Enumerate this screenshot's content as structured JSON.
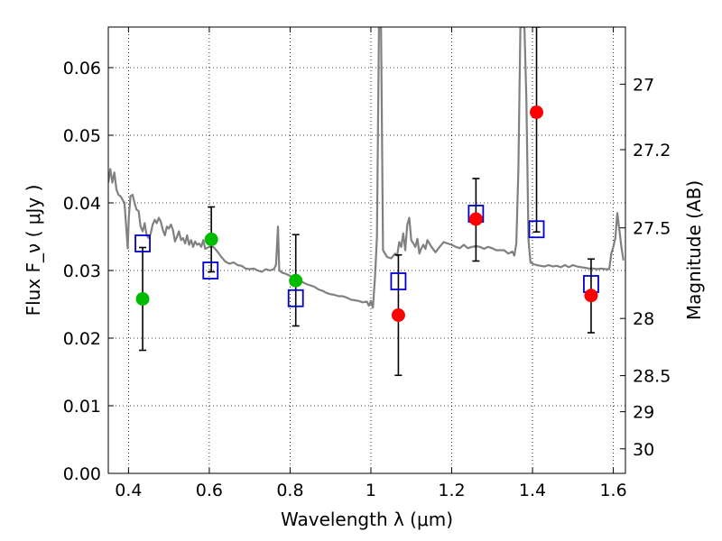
{
  "chart_data": {
    "type": "scatter",
    "xlabel": "Wavelength  λ (μm)",
    "ylabel": "Flux  F_ν  ( μJy )",
    "ylabel_right": "Magnitude (AB)",
    "xlim": [
      0.35,
      1.63
    ],
    "ylim": [
      0.0,
      0.066
    ],
    "grid": true,
    "x_ticks": [
      {
        "value": 0.4,
        "label": "0.4"
      },
      {
        "value": 0.6,
        "label": "0.6"
      },
      {
        "value": 0.8,
        "label": "0.8"
      },
      {
        "value": 1.0,
        "label": "1"
      },
      {
        "value": 1.2,
        "label": "1.2"
      },
      {
        "value": 1.4,
        "label": "1.4"
      },
      {
        "value": 1.6,
        "label": "1.6"
      }
    ],
    "y_ticks": [
      {
        "value": 0.0,
        "label": "0.00"
      },
      {
        "value": 0.01,
        "label": "0.01"
      },
      {
        "value": 0.02,
        "label": "0.02"
      },
      {
        "value": 0.03,
        "label": "0.03"
      },
      {
        "value": 0.04,
        "label": "0.04"
      },
      {
        "value": 0.05,
        "label": "0.05"
      },
      {
        "value": 0.06,
        "label": "0.06"
      }
    ],
    "y2_ticks": [
      {
        "value": 27.0,
        "label": "27"
      },
      {
        "value": 27.2,
        "label": "27.2"
      },
      {
        "value": 27.5,
        "label": "27.5"
      },
      {
        "value": 28.0,
        "label": "28"
      },
      {
        "value": 28.5,
        "label": "28.5"
      },
      {
        "value": 29.0,
        "label": "29"
      },
      {
        "value": 30.0,
        "label": "30"
      }
    ],
    "series": [
      {
        "kind": "line",
        "color": "#808080",
        "points": [
          [
            0.35,
            0.043
          ],
          [
            0.355,
            0.045
          ],
          [
            0.36,
            0.043
          ],
          [
            0.365,
            0.0445
          ],
          [
            0.37,
            0.042
          ],
          [
            0.375,
            0.0412
          ],
          [
            0.38,
            0.041
          ],
          [
            0.385,
            0.0405
          ],
          [
            0.39,
            0.04
          ],
          [
            0.395,
            0.036
          ],
          [
            0.398,
            0.0333
          ],
          [
            0.401,
            0.038
          ],
          [
            0.405,
            0.041
          ],
          [
            0.41,
            0.0412
          ],
          [
            0.415,
            0.04
          ],
          [
            0.42,
            0.039
          ],
          [
            0.425,
            0.0388
          ],
          [
            0.43,
            0.0365
          ],
          [
            0.435,
            0.0358
          ],
          [
            0.44,
            0.037
          ],
          [
            0.445,
            0.0352
          ],
          [
            0.45,
            0.0348
          ],
          [
            0.455,
            0.0355
          ],
          [
            0.46,
            0.0368
          ],
          [
            0.465,
            0.0375
          ],
          [
            0.47,
            0.037
          ],
          [
            0.475,
            0.0378
          ],
          [
            0.48,
            0.0372
          ],
          [
            0.485,
            0.036
          ],
          [
            0.49,
            0.0352
          ],
          [
            0.495,
            0.0365
          ],
          [
            0.5,
            0.0362
          ],
          [
            0.505,
            0.0368
          ],
          [
            0.51,
            0.036
          ],
          [
            0.515,
            0.0343
          ],
          [
            0.52,
            0.035
          ],
          [
            0.525,
            0.0358
          ],
          [
            0.53,
            0.0345
          ],
          [
            0.535,
            0.0348
          ],
          [
            0.54,
            0.034
          ],
          [
            0.545,
            0.0352
          ],
          [
            0.55,
            0.0338
          ],
          [
            0.555,
            0.0345
          ],
          [
            0.56,
            0.0335
          ],
          [
            0.565,
            0.0343
          ],
          [
            0.57,
            0.0338
          ],
          [
            0.575,
            0.034
          ],
          [
            0.58,
            0.0335
          ],
          [
            0.585,
            0.0345
          ],
          [
            0.59,
            0.0332
          ],
          [
            0.6,
            0.0335
          ],
          [
            0.61,
            0.0335
          ],
          [
            0.62,
            0.0328
          ],
          [
            0.63,
            0.032
          ],
          [
            0.64,
            0.0313
          ],
          [
            0.65,
            0.031
          ],
          [
            0.66,
            0.0312
          ],
          [
            0.67,
            0.0308
          ],
          [
            0.68,
            0.0307
          ],
          [
            0.69,
            0.0303
          ],
          [
            0.7,
            0.0302
          ],
          [
            0.71,
            0.0303
          ],
          [
            0.72,
            0.03
          ],
          [
            0.73,
            0.0298
          ],
          [
            0.74,
            0.0302
          ],
          [
            0.75,
            0.03
          ],
          [
            0.76,
            0.0302
          ],
          [
            0.765,
            0.0308
          ],
          [
            0.77,
            0.0365
          ],
          [
            0.773,
            0.03
          ],
          [
            0.78,
            0.0297
          ],
          [
            0.79,
            0.0295
          ],
          [
            0.8,
            0.0292
          ],
          [
            0.81,
            0.0288
          ],
          [
            0.82,
            0.0285
          ],
          [
            0.83,
            0.0283
          ],
          [
            0.84,
            0.028
          ],
          [
            0.85,
            0.0278
          ],
          [
            0.86,
            0.0276
          ],
          [
            0.87,
            0.0272
          ],
          [
            0.88,
            0.027
          ],
          [
            0.89,
            0.0267
          ],
          [
            0.9,
            0.0265
          ],
          [
            0.91,
            0.0264
          ],
          [
            0.92,
            0.0262
          ],
          [
            0.93,
            0.0262
          ],
          [
            0.94,
            0.026
          ],
          [
            0.95,
            0.0257
          ],
          [
            0.96,
            0.0256
          ],
          [
            0.97,
            0.0255
          ],
          [
            0.98,
            0.0253
          ],
          [
            0.99,
            0.0254
          ],
          [
            0.995,
            0.0248
          ],
          [
            1.0,
            0.0255
          ],
          [
            1.005,
            0.0245
          ],
          [
            1.01,
            0.029
          ],
          [
            1.015,
            0.035
          ],
          [
            1.02,
            0.066
          ],
          [
            1.025,
            0.066
          ],
          [
            1.03,
            0.033
          ],
          [
            1.04,
            0.032
          ],
          [
            1.05,
            0.0318
          ],
          [
            1.06,
            0.0325
          ],
          [
            1.065,
            0.0322
          ],
          [
            1.07,
            0.0342
          ],
          [
            1.075,
            0.0335
          ],
          [
            1.08,
            0.0355
          ],
          [
            1.085,
            0.033
          ],
          [
            1.09,
            0.0368
          ],
          [
            1.095,
            0.0378
          ],
          [
            1.1,
            0.0345
          ],
          [
            1.105,
            0.034
          ],
          [
            1.11,
            0.0335
          ],
          [
            1.115,
            0.0347
          ],
          [
            1.12,
            0.0325
          ],
          [
            1.125,
            0.0333
          ],
          [
            1.13,
            0.0338
          ],
          [
            1.135,
            0.0332
          ],
          [
            1.14,
            0.0345
          ],
          [
            1.15,
            0.0335
          ],
          [
            1.16,
            0.0327
          ],
          [
            1.17,
            0.0335
          ],
          [
            1.18,
            0.0342
          ],
          [
            1.19,
            0.034
          ],
          [
            1.2,
            0.0338
          ],
          [
            1.21,
            0.0335
          ],
          [
            1.22,
            0.0333
          ],
          [
            1.23,
            0.0338
          ],
          [
            1.24,
            0.0333
          ],
          [
            1.25,
            0.0335
          ],
          [
            1.26,
            0.0336
          ],
          [
            1.27,
            0.0335
          ],
          [
            1.28,
            0.0332
          ],
          [
            1.29,
            0.0335
          ],
          [
            1.3,
            0.0333
          ],
          [
            1.31,
            0.033
          ],
          [
            1.32,
            0.033
          ],
          [
            1.33,
            0.033
          ],
          [
            1.34,
            0.0325
          ],
          [
            1.35,
            0.0328
          ],
          [
            1.355,
            0.0322
          ],
          [
            1.36,
            0.034
          ],
          [
            1.365,
            0.045
          ],
          [
            1.37,
            0.066
          ],
          [
            1.38,
            0.066
          ],
          [
            1.385,
            0.055
          ],
          [
            1.39,
            0.0345
          ],
          [
            1.395,
            0.0312
          ],
          [
            1.4,
            0.031
          ],
          [
            1.41,
            0.0308
          ],
          [
            1.42,
            0.0307
          ],
          [
            1.43,
            0.0306
          ],
          [
            1.44,
            0.0308
          ],
          [
            1.45,
            0.0306
          ],
          [
            1.46,
            0.0307
          ],
          [
            1.47,
            0.0305
          ],
          [
            1.48,
            0.0308
          ],
          [
            1.49,
            0.0305
          ],
          [
            1.5,
            0.0308
          ],
          [
            1.51,
            0.0306
          ],
          [
            1.52,
            0.0305
          ],
          [
            1.53,
            0.0304
          ],
          [
            1.54,
            0.0303
          ],
          [
            1.55,
            0.0303
          ],
          [
            1.56,
            0.0302
          ],
          [
            1.57,
            0.0303
          ],
          [
            1.58,
            0.0302
          ],
          [
            1.59,
            0.0302
          ],
          [
            1.595,
            0.0325
          ],
          [
            1.6,
            0.0335
          ],
          [
            1.605,
            0.0348
          ],
          [
            1.61,
            0.0385
          ],
          [
            1.615,
            0.036
          ],
          [
            1.62,
            0.0335
          ],
          [
            1.625,
            0.0315
          ]
        ]
      },
      {
        "kind": "points",
        "marker": "square-open",
        "color": "#0000cc",
        "points": [
          [
            0.435,
            0.034
          ],
          [
            0.603,
            0.03
          ],
          [
            0.814,
            0.0259
          ],
          [
            1.068,
            0.0284
          ],
          [
            1.26,
            0.0384
          ],
          [
            1.41,
            0.0361
          ],
          [
            1.545,
            0.028
          ]
        ]
      },
      {
        "kind": "points",
        "marker": "circle",
        "color": "#00bb00",
        "points": [
          [
            0.435,
            0.0258
          ],
          [
            0.605,
            0.0346
          ],
          [
            0.814,
            0.0285
          ]
        ]
      },
      {
        "kind": "points",
        "marker": "circle",
        "color": "#ff0000",
        "points": [
          [
            1.068,
            0.0234
          ],
          [
            1.26,
            0.0376
          ],
          [
            1.41,
            0.0534
          ],
          [
            1.545,
            0.0263
          ]
        ]
      },
      {
        "kind": "errorbars",
        "color": "#000000",
        "bars": [
          {
            "x": 0.435,
            "low": 0.0182,
            "high": 0.0334
          },
          {
            "x": 0.605,
            "low": 0.0298,
            "high": 0.0394
          },
          {
            "x": 0.814,
            "low": 0.0218,
            "high": 0.0353
          },
          {
            "x": 1.068,
            "low": 0.0145,
            "high": 0.0323
          },
          {
            "x": 1.26,
            "low": 0.0314,
            "high": 0.0436
          },
          {
            "x": 1.41,
            "low": 0.0357,
            "high": 0.066
          },
          {
            "x": 1.545,
            "low": 0.0208,
            "high": 0.0317
          }
        ]
      }
    ]
  }
}
